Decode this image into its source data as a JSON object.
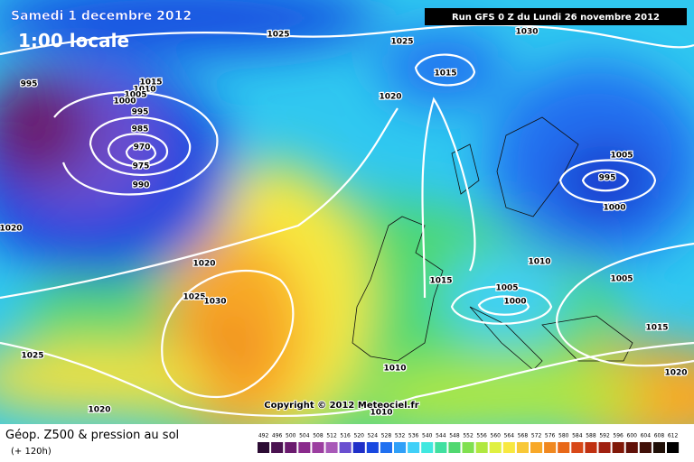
{
  "header": {
    "date": "Samedi 1 decembre 2012",
    "time": "1:00 locale",
    "run": "Run GFS 0 Z du Lundi 26 novembre 2012"
  },
  "copyright": "Copyright © 2012 Meteociel.fr",
  "footer": {
    "title": "Géop. Z500 & pression au sol",
    "lead": "(+ 120h)"
  },
  "scale": {
    "values": [
      492,
      496,
      500,
      504,
      508,
      512,
      516,
      520,
      524,
      528,
      532,
      536,
      540,
      544,
      548,
      552,
      556,
      560,
      564,
      568,
      572,
      576,
      580,
      584,
      588,
      592,
      596,
      600,
      604,
      608,
      612
    ],
    "colors": [
      "#2b0b33",
      "#4a1250",
      "#6a1a6e",
      "#8a2a8c",
      "#9c3ea0",
      "#a859b8",
      "#6a4fd0",
      "#1f2fc8",
      "#1848e0",
      "#2070f0",
      "#30a0f8",
      "#40d0f8",
      "#40e8e0",
      "#40e0a0",
      "#50d870",
      "#80e050",
      "#b0e840",
      "#e0f040",
      "#f8e840",
      "#f8c838",
      "#f8a828",
      "#f08820",
      "#e86818",
      "#d84818",
      "#c03010",
      "#a02010",
      "#801808",
      "#601008",
      "#401008",
      "#201008",
      "#000000"
    ]
  },
  "isobars": [
    1025,
    1030,
    1025,
    1015,
    1020,
    995,
    1015,
    1010,
    1005,
    1000,
    995,
    985,
    970,
    975,
    990,
    1005,
    995,
    1000,
    1020,
    1020,
    1010,
    1015,
    1005,
    1000,
    1005,
    1025,
    1030,
    1025,
    1010,
    1015,
    1020,
    1020,
    1010
  ]
}
